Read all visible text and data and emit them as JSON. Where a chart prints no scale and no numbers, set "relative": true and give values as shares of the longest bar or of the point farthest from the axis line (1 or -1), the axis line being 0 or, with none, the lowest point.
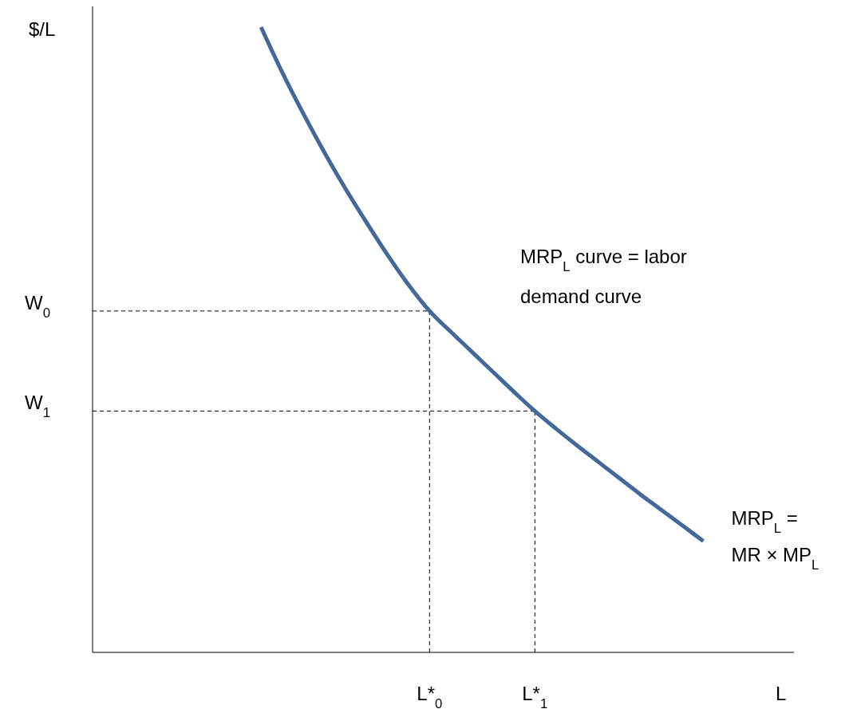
{
  "chart_data": {
    "type": "line",
    "relative": true,
    "xlabel": "L",
    "ylabel": "$/L",
    "categories": [
      null,
      null,
      null,
      null,
      null,
      null,
      null,
      null,
      null,
      null,
      null,
      null,
      null,
      null,
      null,
      null,
      "L*$_{0}$",
      null,
      null,
      null,
      null,
      "L*$_{1}$",
      null,
      null,
      null,
      null,
      null,
      null,
      null,
      null,
      null,
      null,
      null,
      null
    ],
    "series": [
      {
        "color": "#43699a",
        "values": [
          null,
          null,
          null,
          null,
          null,
          null,
          null,
          null,
          1,
          0.928,
          0.862,
          0.8,
          0.742,
          0.688,
          0.636,
          0.588,
          0.546,
          0.513,
          0.481,
          0.449,
          0.417,
          0.386,
          0.358,
          0.331,
          0.305,
          0.279,
          0.253,
          0.228,
          0.203,
          0.178,
          null,
          null,
          null,
          null
        ]
      }
    ],
    "ref_lines": [
      {
        "axis": "y",
        "value": 0.546,
        "label": "W$_{0}$",
        "line_style": "dashed",
        "color": "#000000"
      },
      {
        "axis": "y",
        "value": 0.386,
        "label": "W$_{1}$",
        "line_style": "dashed",
        "color": "#000000"
      },
      {
        "axis": "x",
        "value": "L*$_{0}$",
        "line_style": "dashed",
        "color": "#000000"
      },
      {
        "axis": "x",
        "value": "L*$_{1}$",
        "line_style": "dashed",
        "color": "#000000"
      }
    ],
    "annotations": [
      "MRP$_{L}$ curve = labor demand curve",
      "MRP$_{L}$ = MR × MP$_{L}$"
    ]
  }
}
